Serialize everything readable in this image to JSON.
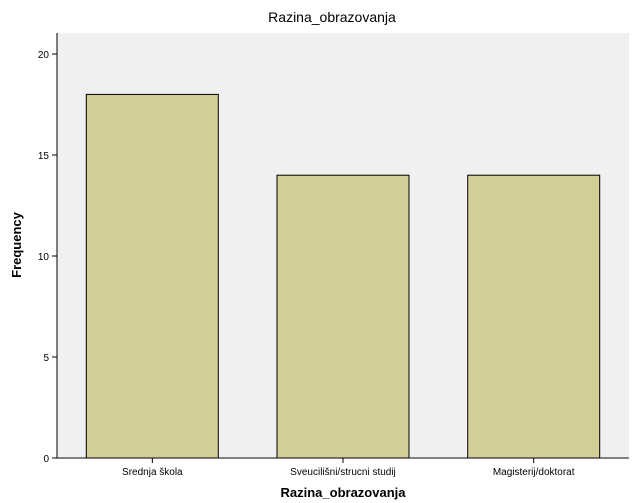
{
  "chart_data": {
    "type": "bar",
    "title": "Razina_obrazovanja",
    "xlabel": "Razina_obrazovanja",
    "ylabel": "Frequency",
    "categories": [
      "Srednja škola",
      "Sveucilišni/strucni studij",
      "Magisterij/doktorat"
    ],
    "values": [
      18,
      14,
      14
    ],
    "ylim": [
      0,
      20
    ],
    "yticks": [
      0,
      5,
      10,
      15,
      20
    ],
    "grid": false,
    "legend": "none",
    "colors": {
      "plot_background": "#f0f0f0",
      "bar_fill": "#d3ce97",
      "bar_stroke": "#000000"
    }
  }
}
